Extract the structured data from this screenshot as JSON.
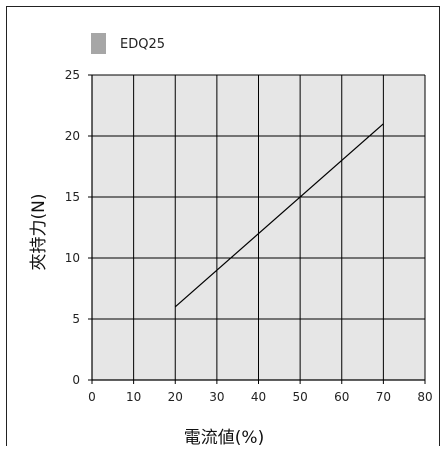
{
  "chart_data": {
    "type": "line",
    "xlabel": "電流値(%)",
    "ylabel": "夾持力(N)",
    "xlim": [
      0,
      80
    ],
    "ylim": [
      0,
      25
    ],
    "xticks": [
      0,
      10,
      20,
      30,
      40,
      50,
      60,
      70,
      80
    ],
    "yticks": [
      0,
      5,
      10,
      15,
      20,
      25
    ],
    "grid": true,
    "legend_position": "top-left",
    "plot_background": "#e6e6e6",
    "series": [
      {
        "name": "EDQ25",
        "legend_color": "#a6a6a6",
        "line_color": "#000000",
        "x": [
          20,
          70
        ],
        "y": [
          6,
          21
        ]
      }
    ]
  }
}
